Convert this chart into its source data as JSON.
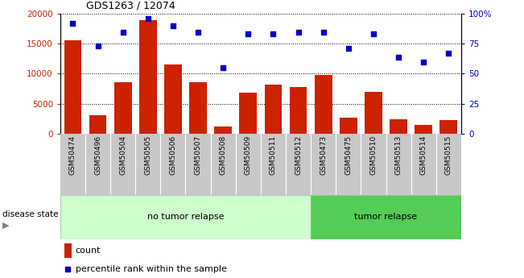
{
  "title": "GDS1263 / 12074",
  "samples": [
    "GSM50474",
    "GSM50496",
    "GSM50504",
    "GSM50505",
    "GSM50506",
    "GSM50507",
    "GSM50508",
    "GSM50509",
    "GSM50511",
    "GSM50512",
    "GSM50473",
    "GSM50475",
    "GSM50510",
    "GSM50513",
    "GSM50514",
    "GSM50515"
  ],
  "counts": [
    15600,
    3100,
    8600,
    19000,
    11600,
    8600,
    1100,
    6800,
    8200,
    7700,
    9800,
    2700,
    6900,
    2400,
    1400,
    2300
  ],
  "percentiles": [
    92,
    73,
    85,
    96,
    90,
    85,
    55,
    83,
    83,
    85,
    85,
    71,
    83,
    64,
    60,
    67
  ],
  "bar_color": "#cc2200",
  "dot_color": "#0000cc",
  "no_relapse_count": 10,
  "tumor_relapse_count": 6,
  "ylim_left": [
    0,
    20000
  ],
  "ylim_right": [
    0,
    100
  ],
  "yticks_left": [
    0,
    5000,
    10000,
    15000,
    20000
  ],
  "yticks_right": [
    0,
    25,
    50,
    75,
    100
  ],
  "no_relapse_bg": "#ccffcc",
  "tumor_relapse_bg": "#55cc55",
  "xtick_bg": "#c8c8c8",
  "legend_count_label": "count",
  "legend_pct_label": "percentile rank within the sample",
  "disease_state_label": "disease state",
  "no_relapse_label": "no tumor relapse",
  "tumor_relapse_label": "tumor relapse"
}
